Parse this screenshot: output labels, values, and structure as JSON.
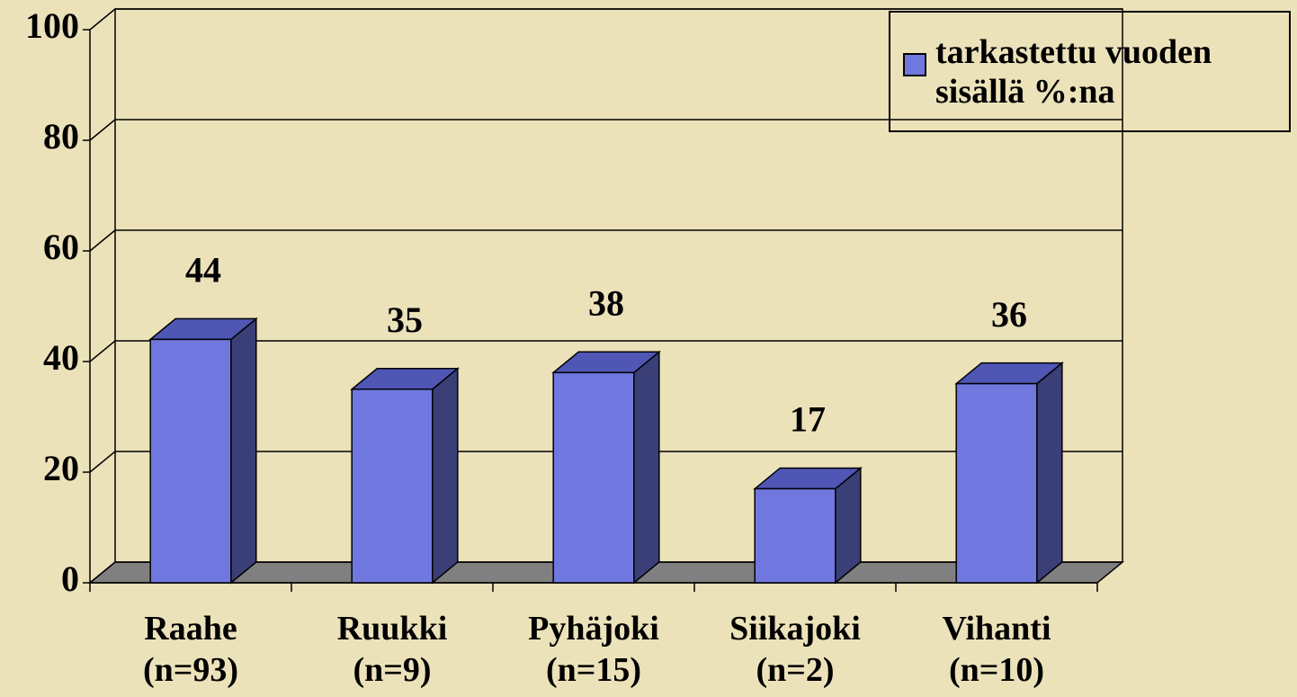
{
  "chart_data": {
    "type": "bar3d",
    "categories": [
      "Raahe\n(n=93)",
      "Ruukki\n(n=9)",
      "Pyhäjoki\n(n=15)",
      "Siikajoki\n(n=2)",
      "Vihanti\n(n=10)"
    ],
    "series": [
      {
        "name": "tarkastettu vuoden sisällä %:na",
        "color": "#7078e0",
        "values": [
          44,
          35,
          38,
          17,
          36
        ]
      }
    ],
    "ylim": [
      0,
      100
    ],
    "yticks": [
      0,
      20,
      40,
      60,
      80,
      100
    ],
    "grid": true,
    "legend": "top-right"
  }
}
